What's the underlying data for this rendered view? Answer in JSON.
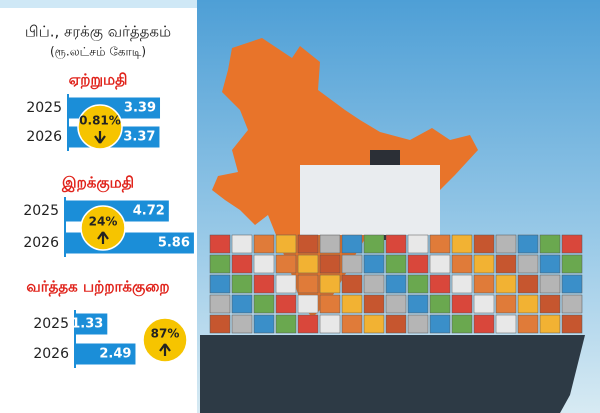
{
  "header": {
    "title": "பிப்., சரக்கு வர்த்தகம்",
    "subtitle": "(ரூ.லட்சம் கோடி)"
  },
  "chart_data": [
    {
      "type": "bar",
      "title": "ஏற்றுமதி",
      "categories": [
        "2025",
        "2026"
      ],
      "values": [
        3.39,
        3.37
      ],
      "xlim": [
        0,
        3.5
      ],
      "color": "#1b8ed8",
      "annotation": "0.81%",
      "change_direction": "down"
    },
    {
      "type": "bar",
      "title": "இறக்குமதி",
      "categories": [
        "2025",
        "2026"
      ],
      "values": [
        4.72,
        5.86
      ],
      "xlim": [
        0,
        6
      ],
      "color": "#1b8ed8",
      "annotation": "24%",
      "change_direction": "up"
    },
    {
      "type": "bar",
      "title": "வர்த்தக பற்றாக்குறை",
      "categories": [
        "2025",
        "2026"
      ],
      "values": [
        1.33,
        2.49
      ],
      "xlim": [
        0,
        3.5
      ],
      "color": "#1b8ed8",
      "annotation": "87%",
      "change_direction": "up"
    }
  ]
}
